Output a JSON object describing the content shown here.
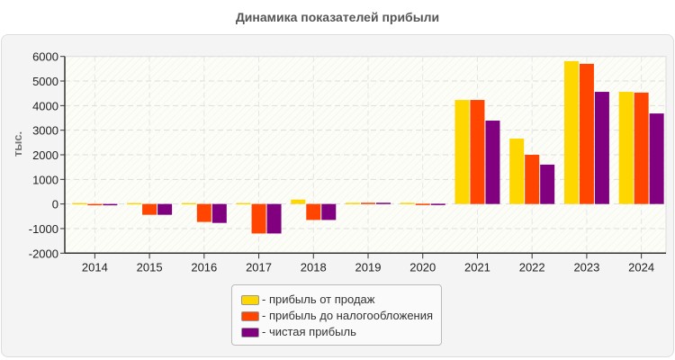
{
  "chart_data": {
    "type": "bar",
    "title": "Динамика показателей прибыли",
    "ylabel": "тыс.",
    "xlabel": "",
    "ylim": [
      -2000,
      6000
    ],
    "yticks": [
      "6000",
      "5000",
      "4000",
      "3000",
      "2000",
      "1000",
      "0",
      "-1000",
      "-2000"
    ],
    "grid": true,
    "legend_position": "bottom",
    "categories": [
      "2014",
      "2015",
      "2016",
      "2017",
      "2018",
      "2019",
      "2020",
      "2021",
      "2022",
      "2023",
      "2024"
    ],
    "series": [
      {
        "name": "- прибыль от продаж",
        "color": "#FFD700",
        "values": [
          40,
          40,
          40,
          40,
          180,
          50,
          50,
          4230,
          2660,
          5810,
          4560
        ]
      },
      {
        "name": "- прибыль до налогообложения",
        "color": "#FF4500",
        "values": [
          -20,
          -440,
          -730,
          -1200,
          -650,
          50,
          10,
          4230,
          2000,
          5700,
          4530
        ]
      },
      {
        "name": "- чистая прибыль",
        "color": "#800080",
        "values": [
          -20,
          -440,
          -770,
          -1200,
          -650,
          50,
          10,
          3390,
          1600,
          4560,
          3680
        ]
      }
    ]
  }
}
